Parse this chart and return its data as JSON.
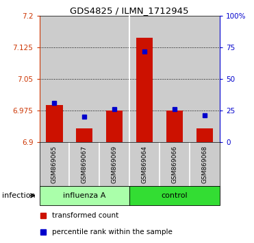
{
  "title": "GDS4825 / ILMN_1712945",
  "samples": [
    "GSM869065",
    "GSM869067",
    "GSM869069",
    "GSM869064",
    "GSM869066",
    "GSM869068"
  ],
  "red_values": [
    6.988,
    6.933,
    6.975,
    7.148,
    6.975,
    6.933
  ],
  "blue_values": [
    6.993,
    6.961,
    6.978,
    7.115,
    6.979,
    6.963
  ],
  "ymin": 6.9,
  "ymax": 7.2,
  "yticks_left": [
    6.9,
    6.975,
    7.05,
    7.125,
    7.2
  ],
  "ytick_labels_left": [
    "6.9",
    "6.975",
    "7.05",
    "7.125",
    "7.2"
  ],
  "y2ticks": [
    0,
    25,
    50,
    75,
    100
  ],
  "y2tick_labels": [
    "0",
    "25",
    "50",
    "75",
    "100%"
  ],
  "left_axis_color": "#cc3300",
  "right_axis_color": "#0000cc",
  "bar_color": "#cc1100",
  "dot_color": "#0000cc",
  "col_bg_color": "#cccccc",
  "group_influenza_color": "#aaffaa",
  "group_control_color": "#33dd33",
  "infection_label": "infection",
  "influenza_label": "influenza A",
  "control_label": "control",
  "legend_red": "transformed count",
  "legend_blue": "percentile rank within the sample"
}
